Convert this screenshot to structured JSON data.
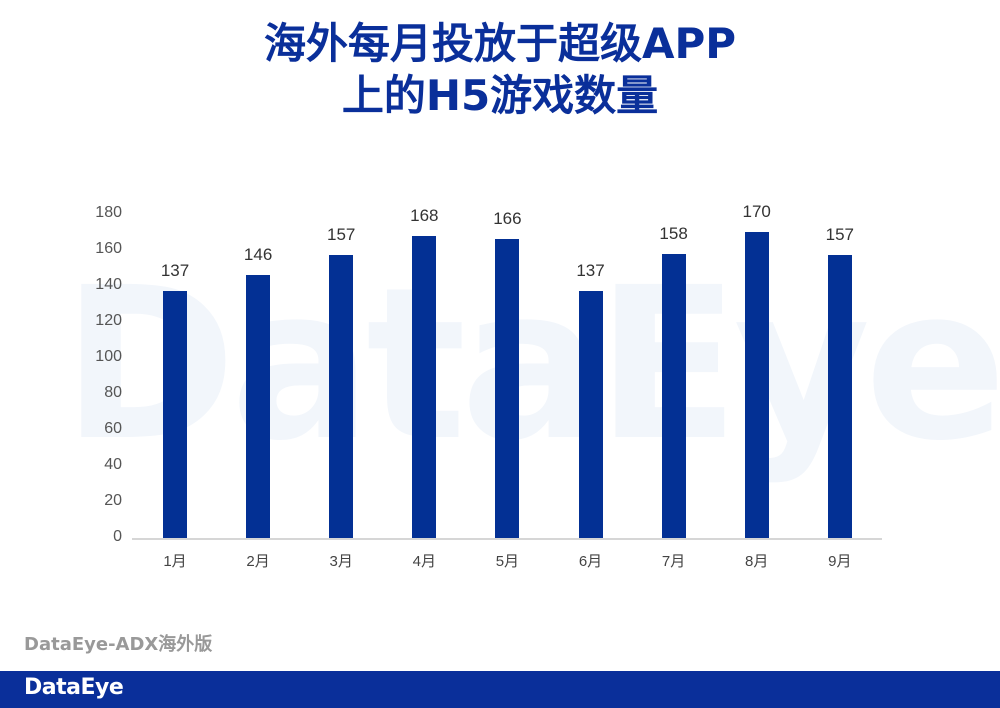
{
  "title": {
    "line1": "海外每月投放于超级APP",
    "line2": "上的H5游戏数量"
  },
  "watermark": "DataEye",
  "source": "DataEye-ADX海外版",
  "footer": {
    "logo": "DataEye",
    "bg_color": "#0a2f9a"
  },
  "colors": {
    "bar": "#033094",
    "title": "#0a2f9a",
    "axis": "#d6d6d6"
  },
  "chart_data": {
    "type": "bar",
    "title": "海外每月投放于超级APP上的H5游戏数量",
    "categories": [
      "1月",
      "2月",
      "3月",
      "4月",
      "5月",
      "6月",
      "7月",
      "8月",
      "9月"
    ],
    "values": [
      137,
      146,
      157,
      168,
      166,
      137,
      158,
      170,
      157
    ],
    "xlabel": "",
    "ylabel": "",
    "ylim": [
      0,
      180
    ],
    "yticks": [
      0,
      20,
      40,
      60,
      80,
      100,
      120,
      140,
      160,
      180
    ],
    "grid": false,
    "legend": "none",
    "data_labels": true
  }
}
